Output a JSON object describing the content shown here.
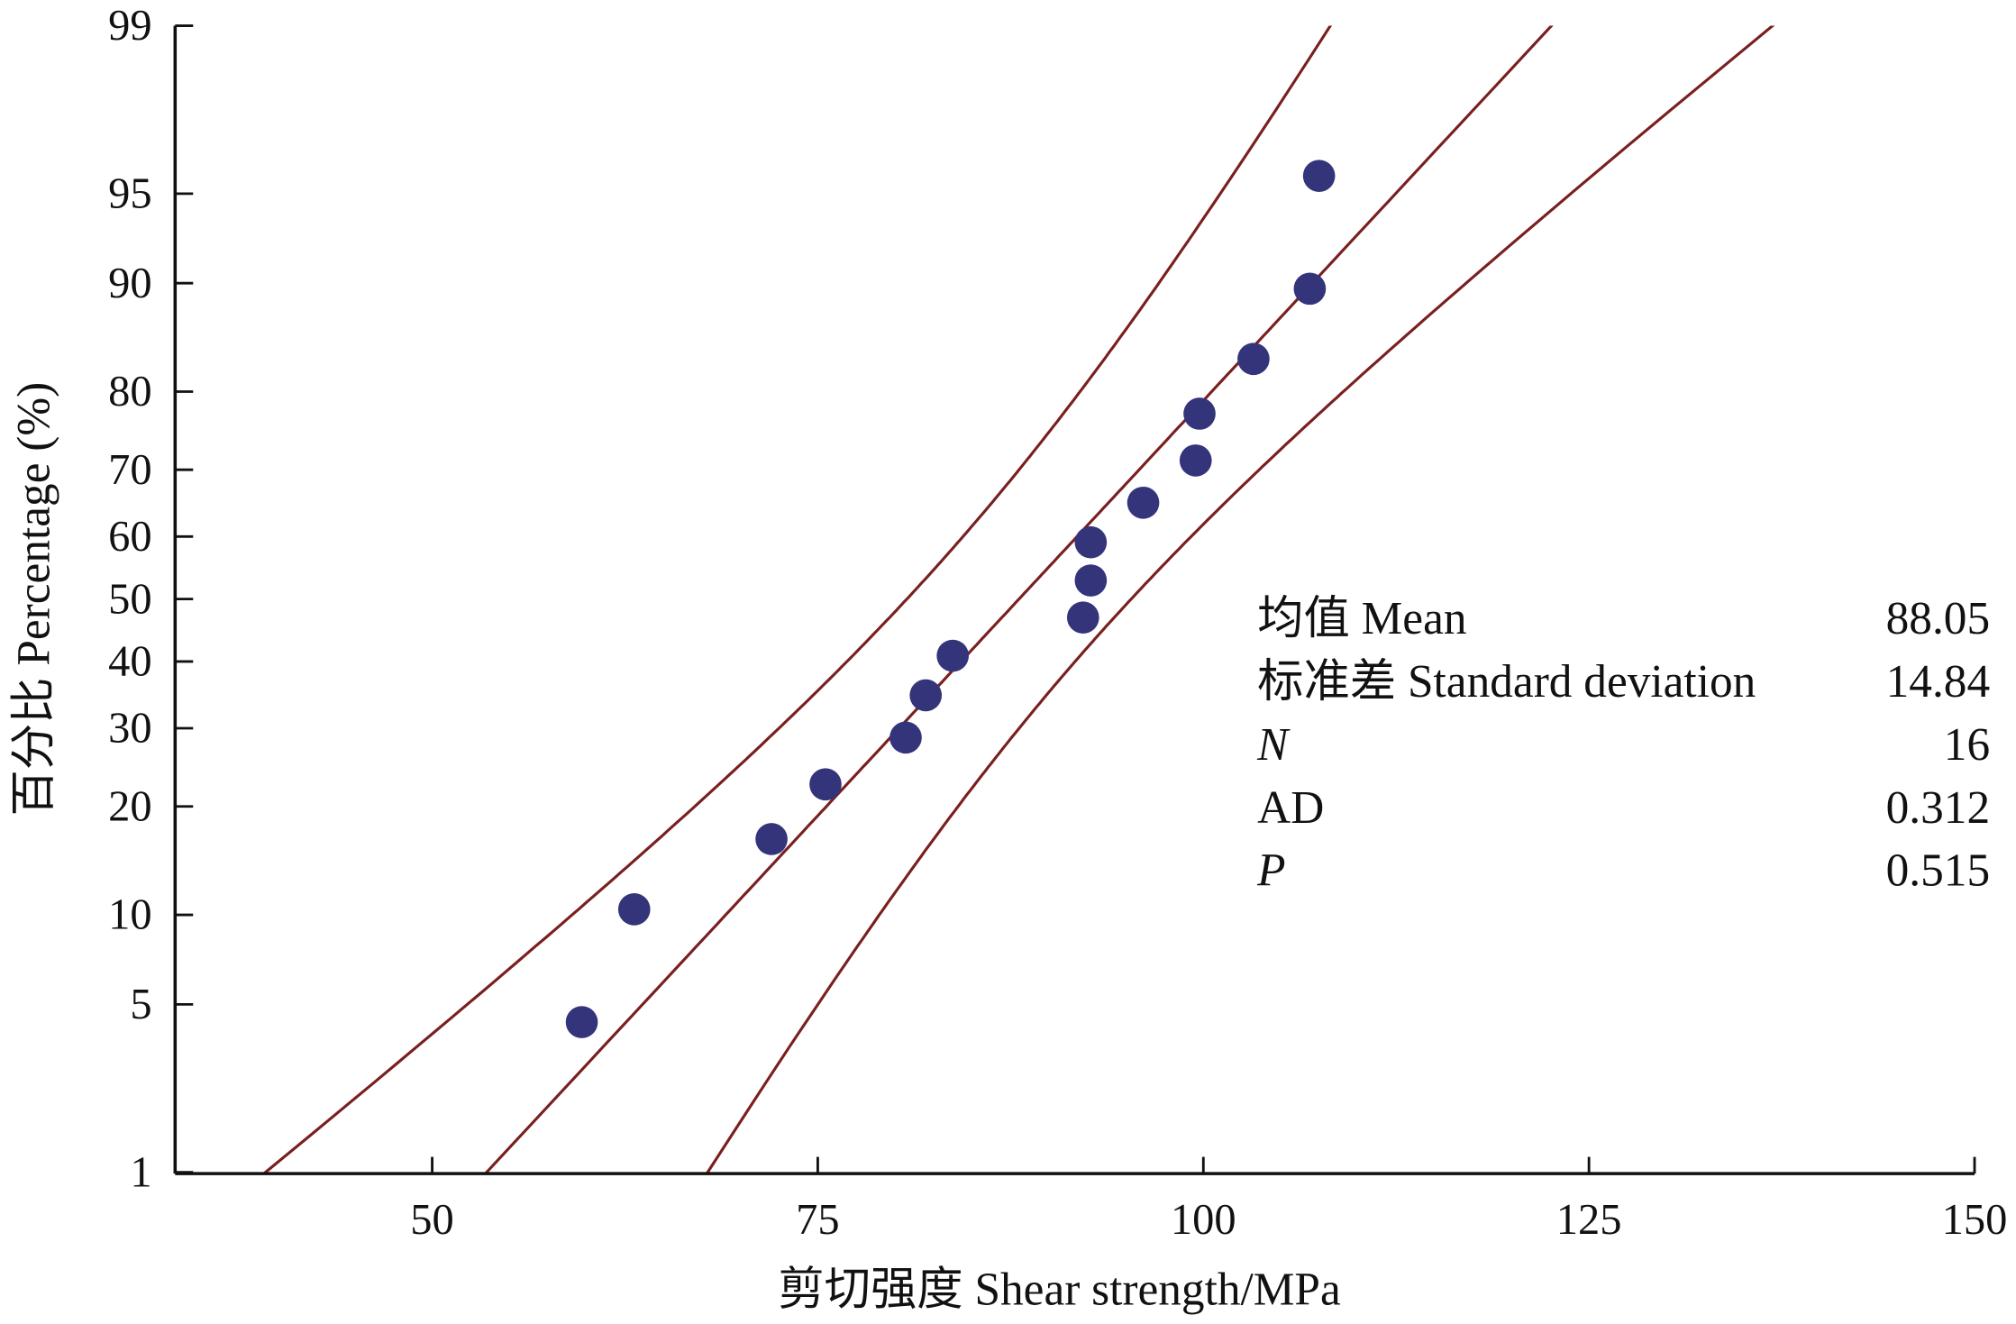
{
  "chart_data": {
    "type": "scatter",
    "subtype": "normal probability plot with fitted line and 95% confidence bands",
    "xlabel": "剪切强度 Shear strength/MPa",
    "ylabel": "百分比 Percentage (%)",
    "xlim": [
      33.3,
      150
    ],
    "ylim": [
      1,
      99
    ],
    "y_scale": "normal probability",
    "xticks": [
      50,
      75,
      100,
      125,
      150
    ],
    "yticks": [
      1,
      5,
      10,
      20,
      30,
      40,
      50,
      60,
      70,
      80,
      90,
      95,
      99
    ],
    "grid": false,
    "points": {
      "x": [
        59.7,
        63.1,
        72.0,
        75.5,
        80.7,
        82.0,
        83.75,
        92.2,
        92.7,
        92.7,
        96.1,
        99.5,
        99.75,
        103.25,
        106.9,
        107.5
      ],
      "y": [
        4.3,
        10.4,
        16.5,
        22.6,
        28.7,
        34.8,
        40.9,
        47.0,
        53.0,
        59.1,
        65.2,
        71.3,
        77.4,
        83.5,
        89.6,
        95.7
      ]
    },
    "fit": {
      "mean": 88.05,
      "sd": 14.84
    },
    "colors": {
      "points": "#34347a",
      "lines": "#7a1f1f",
      "axes": "#111111"
    },
    "stats": [
      {
        "label": "均值 Mean",
        "value": "88.05",
        "italic": false
      },
      {
        "label": "标准差 Standard deviation",
        "value": "14.84",
        "italic": false
      },
      {
        "label": "N",
        "value": "16",
        "italic": true
      },
      {
        "label": "AD",
        "value": "0.312",
        "italic": false
      },
      {
        "label": "P",
        "value": "0.515",
        "italic": true
      }
    ]
  }
}
